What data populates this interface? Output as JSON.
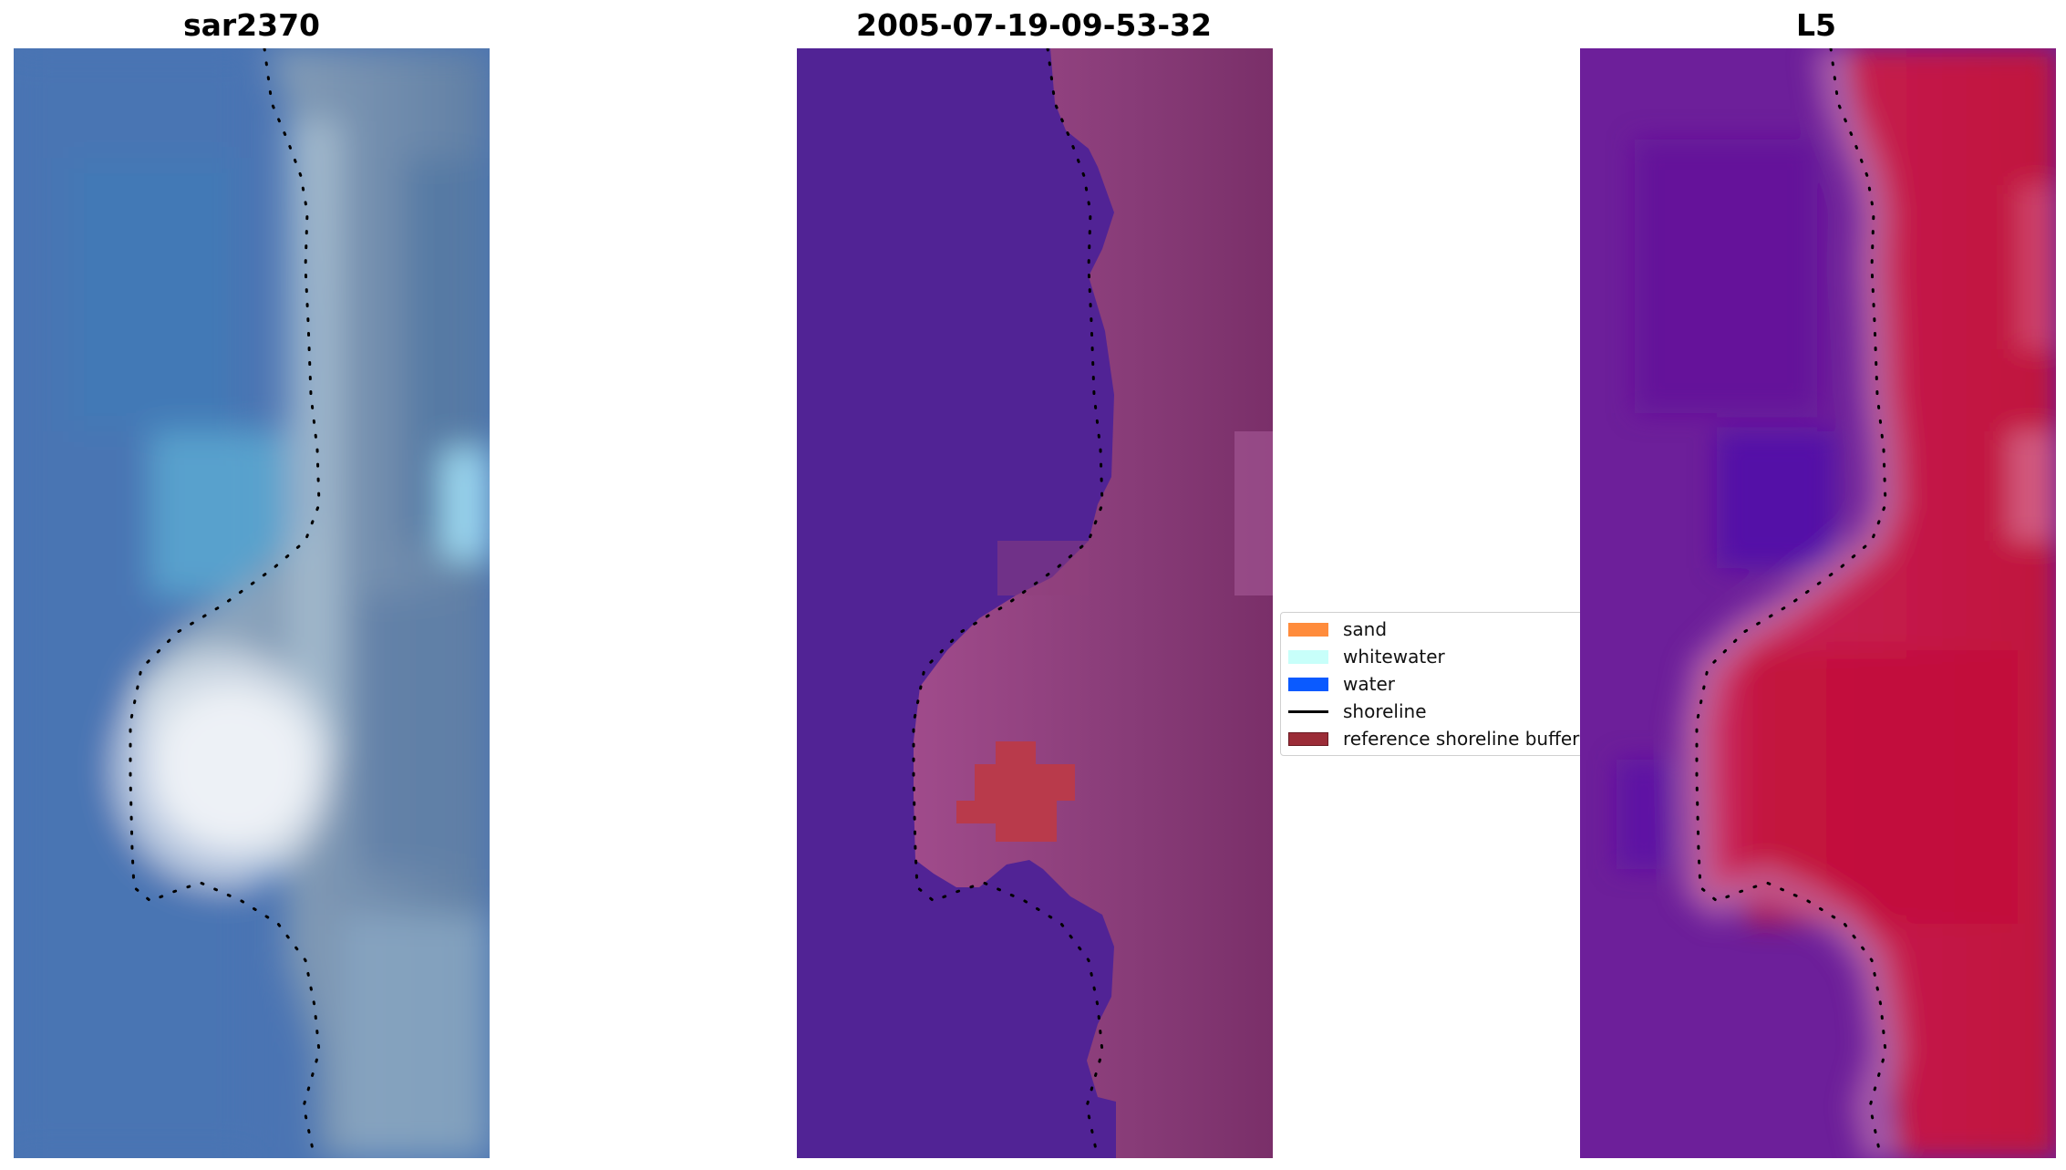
{
  "panels": [
    {
      "title": "sar2370"
    },
    {
      "title": "2005-07-19-09-53-32"
    },
    {
      "title": "L5"
    }
  ],
  "legend": {
    "items": [
      {
        "label": "sand",
        "color": "#ff8c3c",
        "kind": "patch"
      },
      {
        "label": "whitewater",
        "color": "#c8fffa",
        "kind": "patch"
      },
      {
        "label": "water",
        "color": "#0a5aff",
        "kind": "patch"
      },
      {
        "label": "shoreline",
        "color": "#000000",
        "kind": "line"
      },
      {
        "label": "reference shoreline buffer",
        "color": "#9b2c37",
        "kind": "patch"
      }
    ]
  },
  "colors": {
    "water_classified": "#512395",
    "land_classified": "#8e3f7a",
    "reference_buffer": "#b93a4b",
    "sar_water": "#4a74b4",
    "sar_land": "#8fa7c1",
    "l5_water": "#6a1f9a",
    "l5_land": "#c41842"
  }
}
